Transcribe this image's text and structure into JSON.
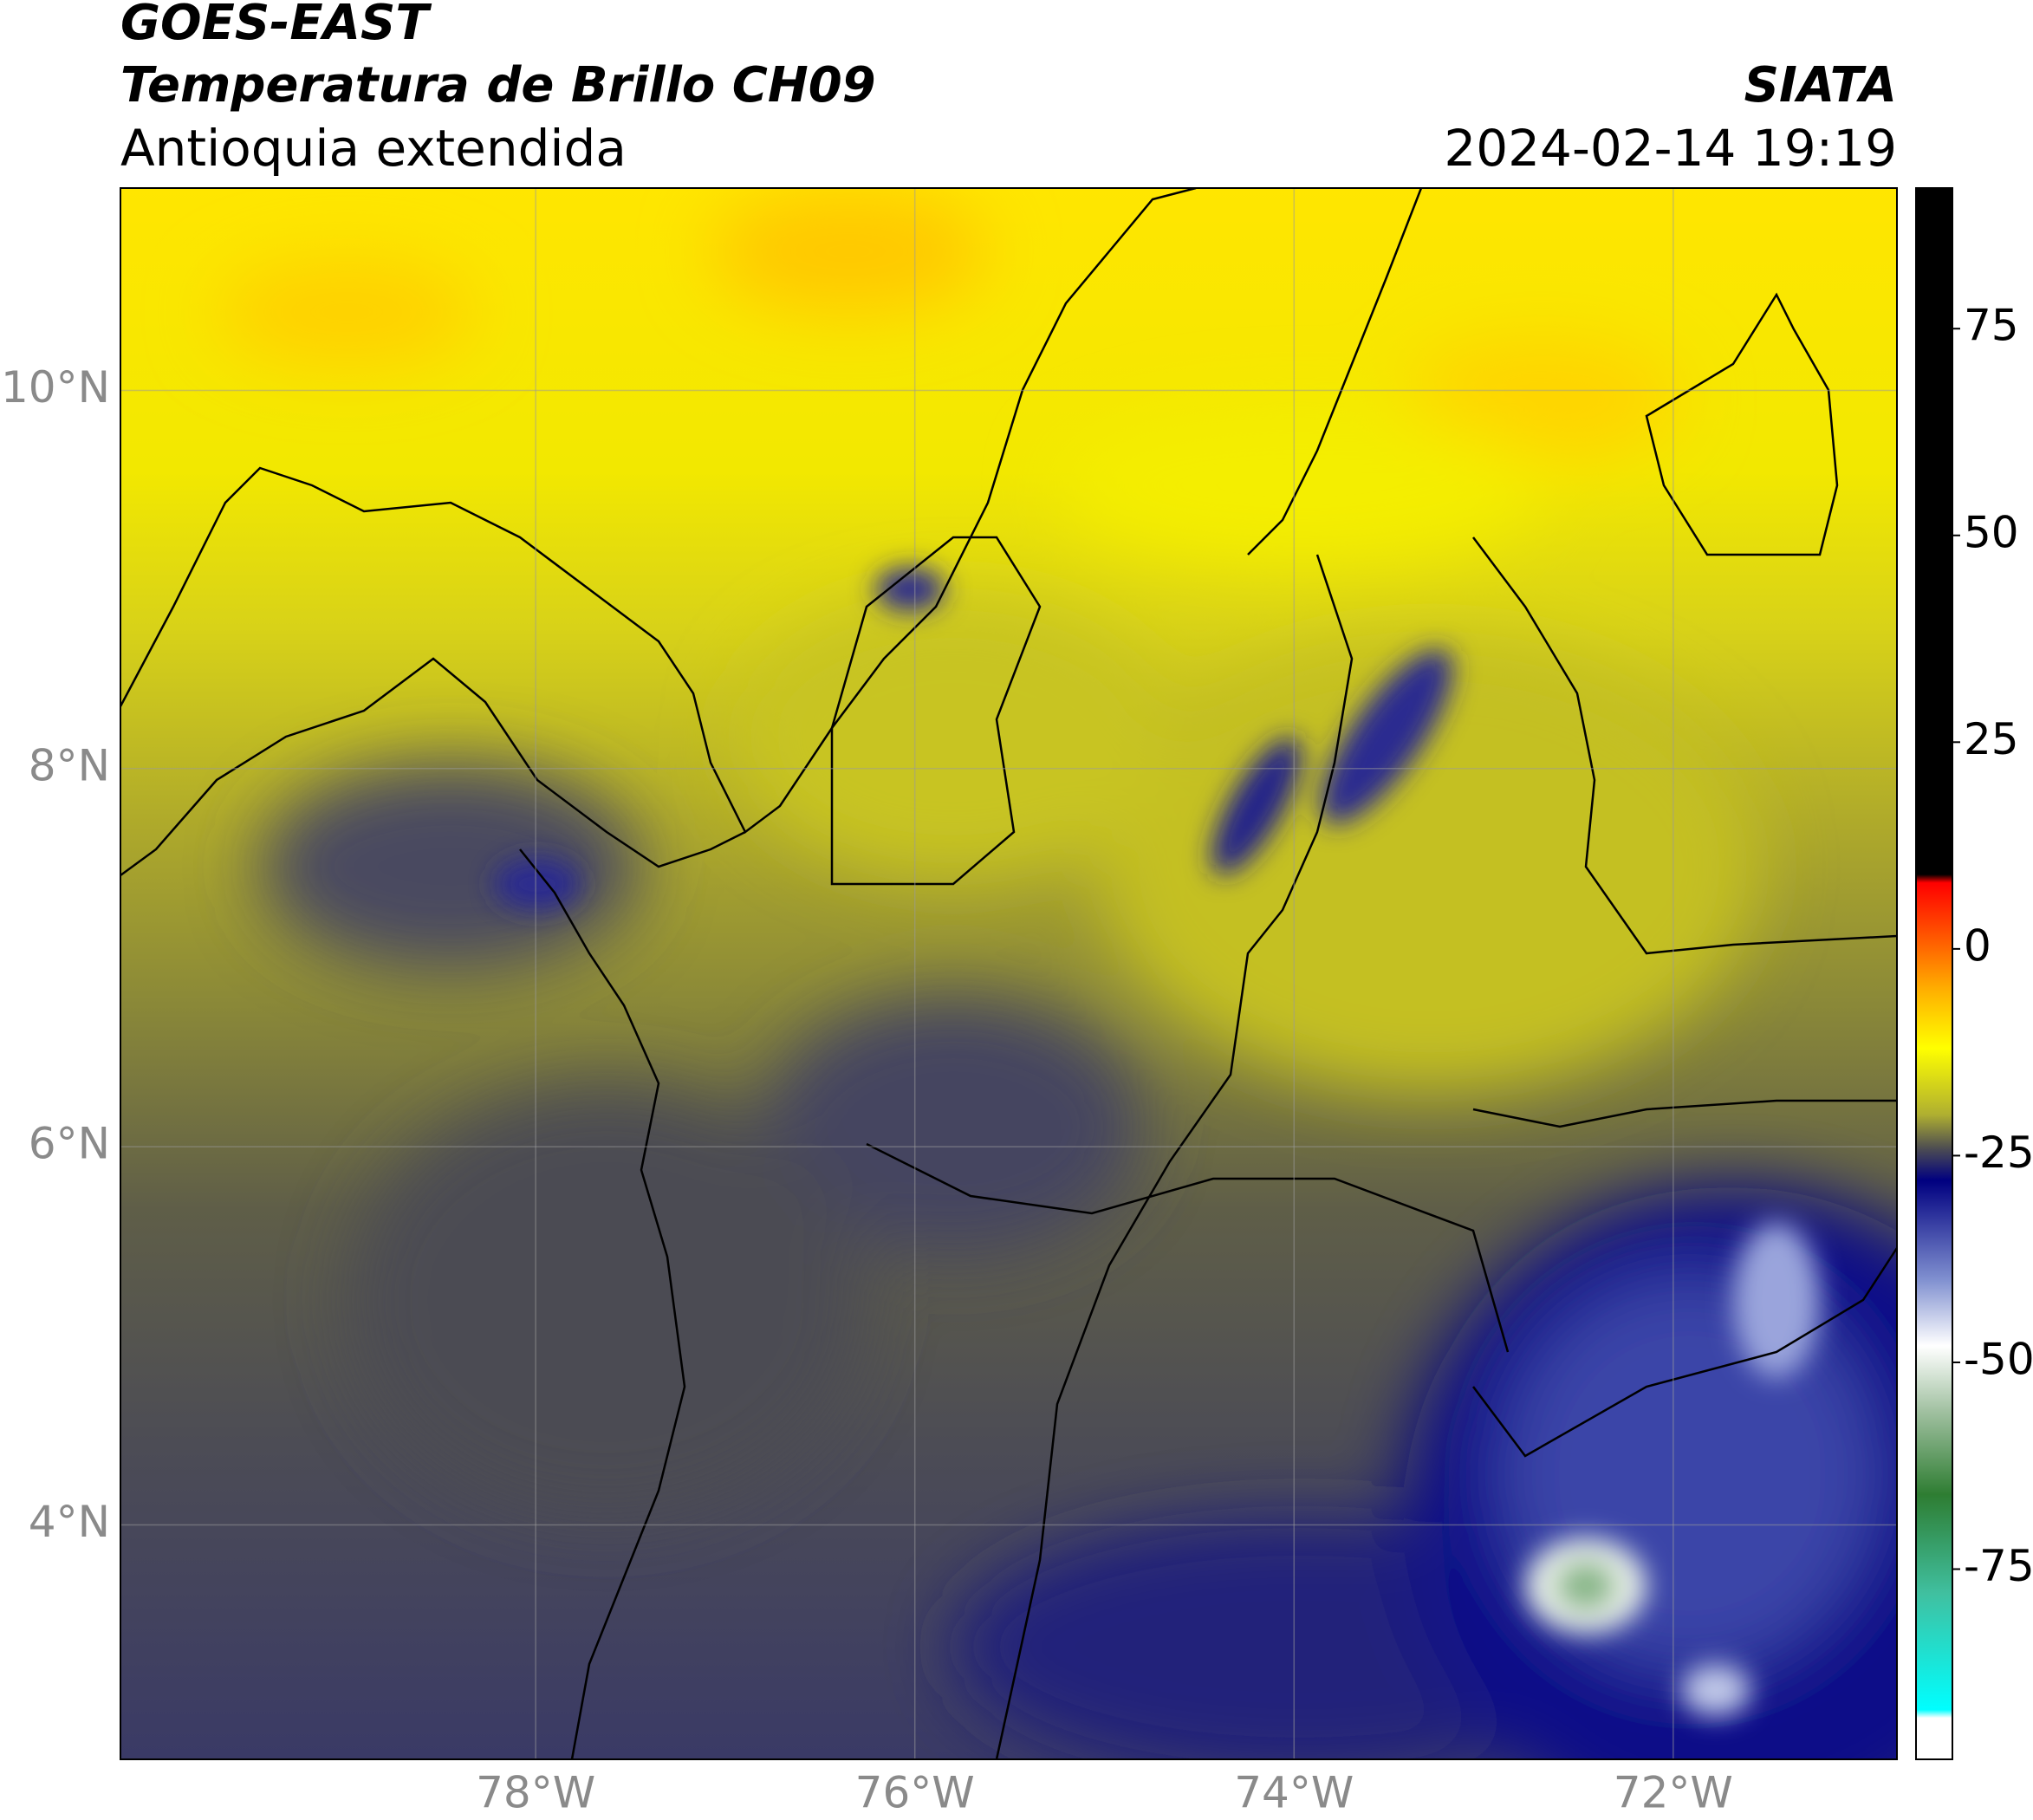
{
  "header": {
    "title": "GOES-EAST",
    "subtitle": "Temperatura de Brillo CH09",
    "region": "Antioquia extendida",
    "source": "SIATA",
    "datetime": "2024-02-14 19:19"
  },
  "map": {
    "xlim": [
      -80.19,
      -70.82
    ],
    "ylim": [
      2.76,
      11.07
    ],
    "xticks": [
      {
        "value": -78,
        "label": "78°W"
      },
      {
        "value": -76,
        "label": "76°W"
      },
      {
        "value": -74,
        "label": "74°W"
      },
      {
        "value": -72,
        "label": "72°W"
      }
    ],
    "yticks": [
      {
        "value": 10,
        "label": "10°N"
      },
      {
        "value": 8,
        "label": "8°N"
      },
      {
        "value": 6,
        "label": "6°N"
      },
      {
        "value": 4,
        "label": "4°N"
      }
    ],
    "grid": true
  },
  "colorbar": {
    "lim": [
      -98,
      92
    ],
    "ticks": [
      -75,
      -50,
      -25,
      0,
      25,
      50,
      75
    ],
    "stops": [
      {
        "value": 92,
        "color": "#000000"
      },
      {
        "value": 9,
        "color": "#000000"
      },
      {
        "value": 8,
        "color": "#ff0000"
      },
      {
        "value": 0,
        "color": "#ff6a00"
      },
      {
        "value": -5,
        "color": "#ffb000"
      },
      {
        "value": -12,
        "color": "#ffff00"
      },
      {
        "value": -20,
        "color": "#b0b030"
      },
      {
        "value": -24,
        "color": "#505050"
      },
      {
        "value": -28,
        "color": "#000080"
      },
      {
        "value": -40,
        "color": "#8090d0"
      },
      {
        "value": -48,
        "color": "#ffffff"
      },
      {
        "value": -56,
        "color": "#a0c0a0"
      },
      {
        "value": -66,
        "color": "#2e7d32"
      },
      {
        "value": -78,
        "color": "#40c0a0"
      },
      {
        "value": -92,
        "color": "#00ffff"
      },
      {
        "value": -93,
        "color": "#ffffff"
      },
      {
        "value": -98,
        "color": "#ffffff"
      }
    ]
  }
}
